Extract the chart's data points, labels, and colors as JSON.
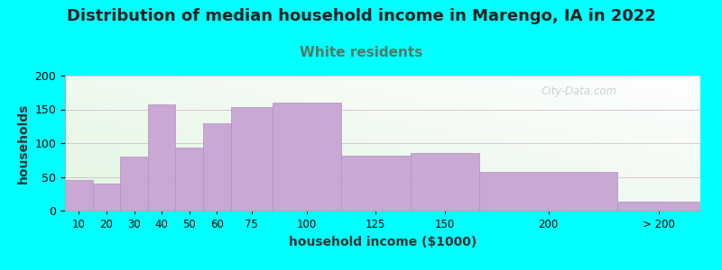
{
  "title": "Distribution of median household income in Marengo, IA in 2022",
  "subtitle": "White residents",
  "xlabel": "household income ($1000)",
  "ylabel": "households",
  "background_color": "#00FFFF",
  "bar_color": "#c9a8d4",
  "bar_edge_color": "#b090c0",
  "categories": [
    "10",
    "20",
    "30",
    "40",
    "50",
    "60",
    "75",
    "100",
    "125",
    "150",
    "200",
    "> 200"
  ],
  "values": [
    45,
    40,
    80,
    158,
    93,
    130,
    153,
    160,
    82,
    85,
    57,
    13
  ],
  "edges": [
    0,
    10,
    20,
    30,
    40,
    50,
    60,
    75,
    100,
    125,
    150,
    200,
    230
  ],
  "ylim": [
    0,
    200
  ],
  "yticks": [
    0,
    50,
    100,
    150,
    200
  ],
  "title_fontsize": 13,
  "subtitle_fontsize": 11,
  "subtitle_color": "#557766",
  "axis_label_fontsize": 10,
  "watermark": "City-Data.com",
  "watermark_color": "#bbcccc"
}
